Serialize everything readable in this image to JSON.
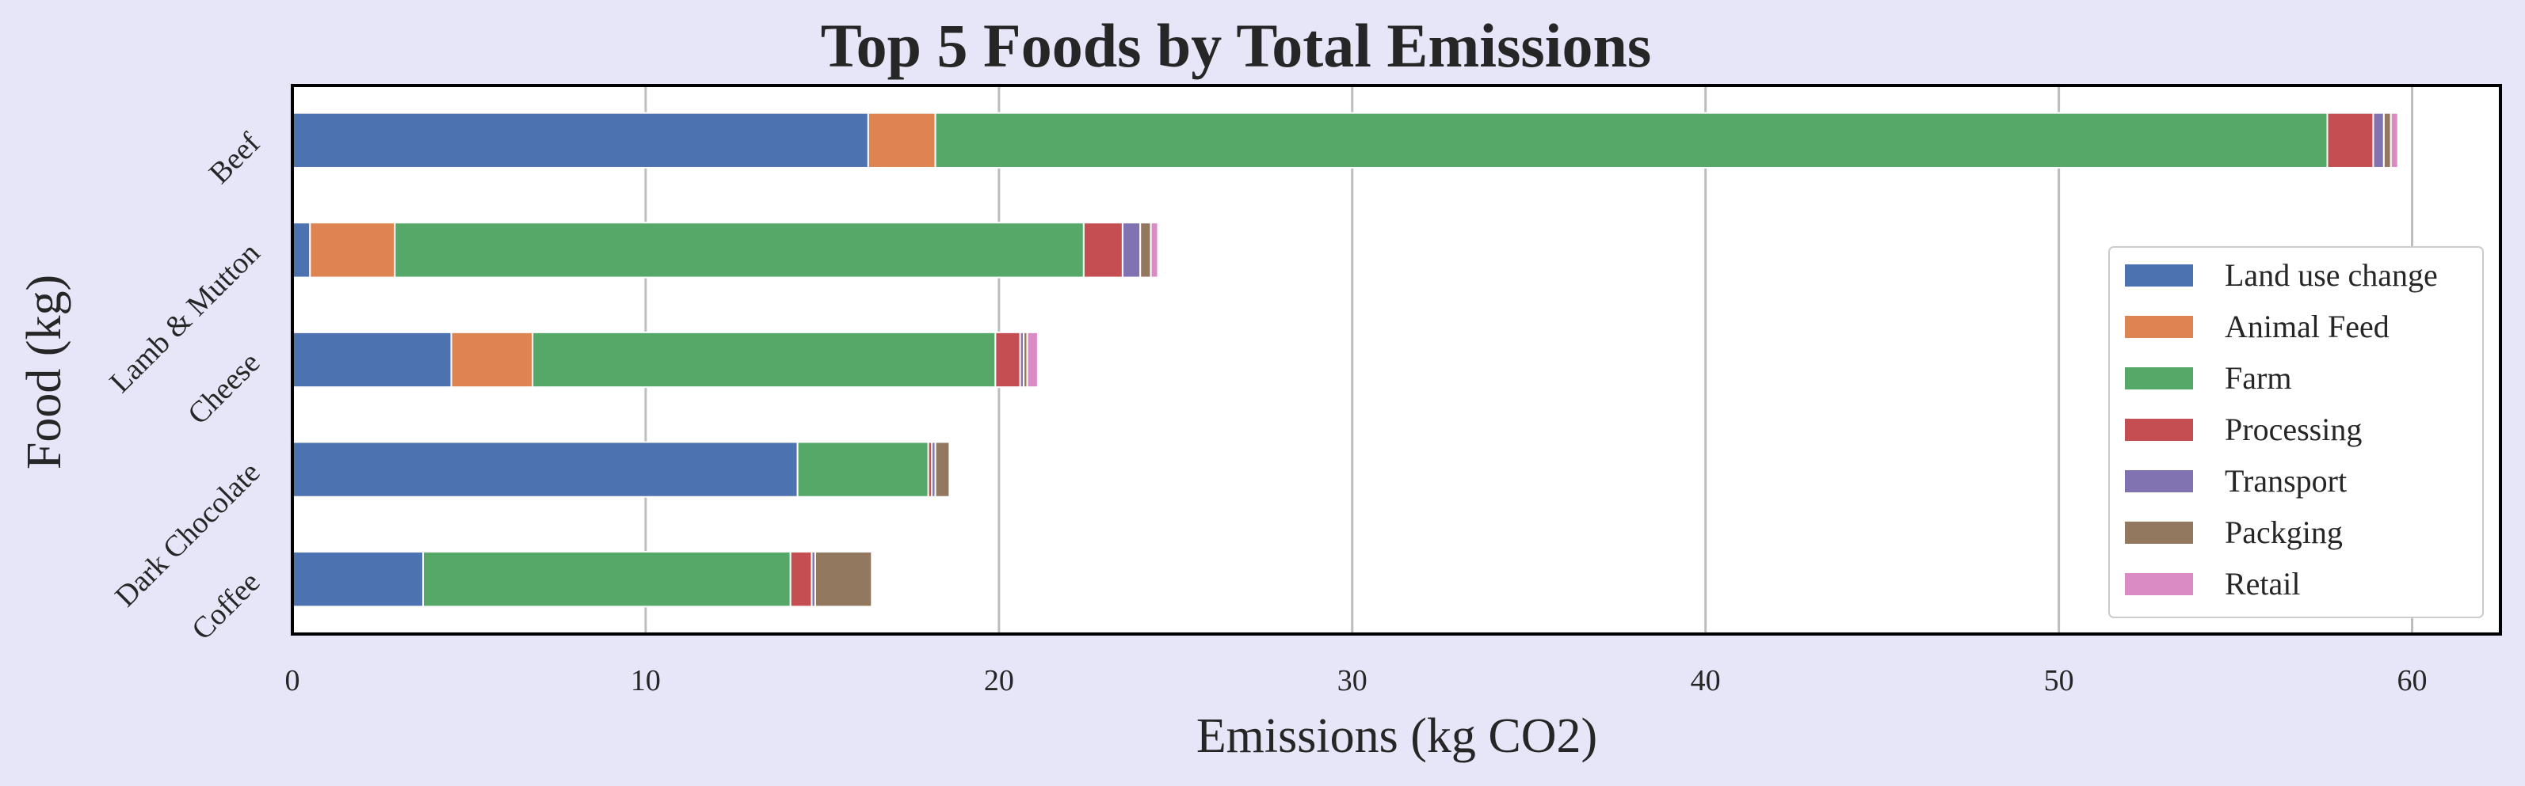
{
  "chart_data": {
    "type": "bar",
    "orientation": "horizontal",
    "stacked": true,
    "title": "Top 5 Foods by Total Emissions",
    "xlabel": "Emissions (kg CO2)",
    "ylabel": "Food (kg)",
    "xlim": [
      0,
      62.5
    ],
    "xticks": [
      0,
      10,
      20,
      30,
      40,
      50,
      60
    ],
    "grid": "x",
    "legend_position": "right",
    "categories": [
      "Beef",
      "Lamb & Mutton",
      "Cheese",
      "Dark Chocolate",
      "Coffee"
    ],
    "series": [
      {
        "name": "Land use change",
        "color": "#4c72b0",
        "values": [
          16.3,
          0.5,
          4.5,
          14.3,
          3.7
        ]
      },
      {
        "name": "Animal Feed",
        "color": "#dd8452",
        "values": [
          1.9,
          2.4,
          2.3,
          0.0,
          0.0
        ]
      },
      {
        "name": "Farm",
        "color": "#55a868",
        "values": [
          39.4,
          19.5,
          13.1,
          3.7,
          10.4
        ]
      },
      {
        "name": "Processing",
        "color": "#c44e52",
        "values": [
          1.3,
          1.1,
          0.7,
          0.1,
          0.6
        ]
      },
      {
        "name": "Transport",
        "color": "#8172b2",
        "values": [
          0.3,
          0.5,
          0.1,
          0.1,
          0.1
        ]
      },
      {
        "name": "Packging",
        "color": "#937860",
        "values": [
          0.2,
          0.3,
          0.1,
          0.4,
          1.6
        ]
      },
      {
        "name": "Retail",
        "color": "#da8bc3",
        "values": [
          0.2,
          0.2,
          0.3,
          0.0,
          0.0
        ]
      }
    ]
  }
}
